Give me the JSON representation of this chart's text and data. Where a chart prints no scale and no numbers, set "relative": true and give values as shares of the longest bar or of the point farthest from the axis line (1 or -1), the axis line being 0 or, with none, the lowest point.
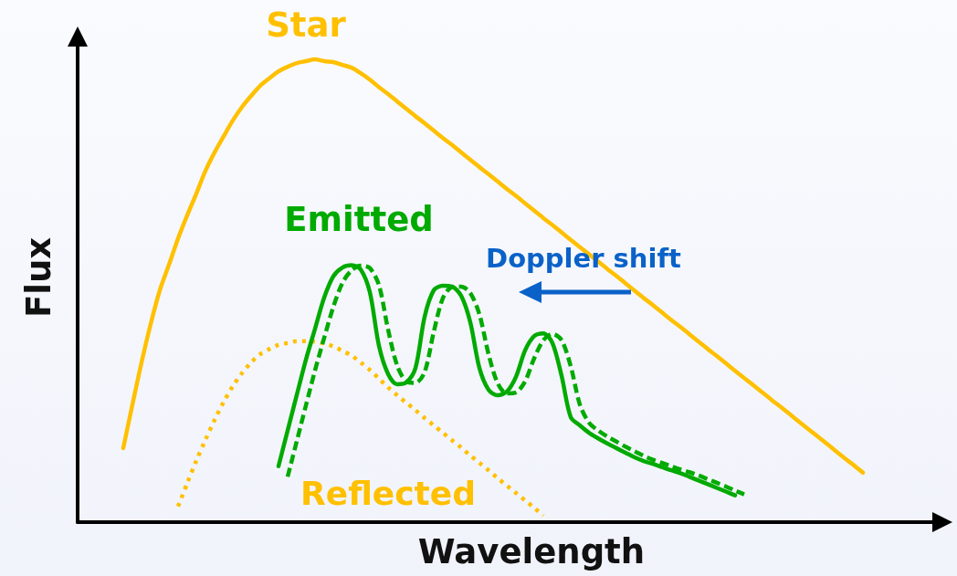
{
  "chart_data": {
    "type": "line",
    "relative": true,
    "xlabel": "Wavelength",
    "ylabel": "Flux",
    "annotations": [
      "Doppler shift"
    ],
    "categories": [
      null,
      null,
      null,
      null,
      null,
      null,
      null,
      null,
      null,
      null,
      null,
      null,
      null,
      null,
      null,
      null,
      null,
      null,
      null,
      null,
      null,
      null,
      null,
      null,
      null,
      null,
      null,
      null,
      null,
      null,
      null,
      null,
      null,
      null,
      null,
      null,
      null,
      null,
      null,
      null,
      null,
      null,
      null,
      null,
      null,
      null,
      null,
      null,
      null,
      null,
      null,
      null,
      null,
      null,
      null,
      null,
      null,
      null,
      null,
      null,
      null,
      null,
      null,
      null,
      null,
      null,
      null,
      null,
      null,
      null,
      null,
      null,
      null,
      null,
      null,
      null,
      null,
      null,
      null,
      null,
      null,
      null,
      null,
      null,
      null,
      null,
      null,
      null,
      null,
      null,
      null,
      null,
      null,
      null,
      null,
      null
    ],
    "series": [
      {
        "name": "Star",
        "color": "#ffc000",
        "line_style": "solid",
        "values": [
          null,
          null,
          null,
          null,
          null,
          0.16,
          0.254,
          0.345,
          0.428,
          0.501,
          0.556,
          0.613,
          0.663,
          0.71,
          0.759,
          0.799,
          0.834,
          0.868,
          0.897,
          0.921,
          0.943,
          0.959,
          0.974,
          0.984,
          0.992,
          0.996,
          1,
          0.996,
          0.994,
          0.988,
          0.982,
          0.97,
          0.956,
          0.94,
          0.925,
          0.909,
          0.893,
          0.877,
          0.862,
          0.846,
          0.83,
          0.815,
          0.799,
          0.783,
          0.767,
          0.752,
          0.736,
          0.72,
          0.705,
          0.689,
          0.673,
          0.657,
          0.642,
          0.626,
          0.61,
          0.594,
          0.579,
          0.563,
          0.547,
          0.532,
          0.516,
          0.5,
          0.484,
          0.469,
          0.453,
          0.437,
          0.422,
          0.406,
          0.39,
          0.374,
          0.359,
          0.343,
          0.327,
          0.311,
          0.296,
          0.28,
          0.264,
          0.249,
          0.233,
          0.217,
          0.201,
          0.186,
          0.17,
          0.154,
          0.138,
          0.123,
          0.107,
          null,
          null,
          null,
          null,
          null,
          null,
          null,
          null,
          null
        ]
      },
      {
        "name": "Reflected",
        "color": "#ffc000",
        "line_style": "dotted",
        "values": [
          null,
          null,
          null,
          null,
          null,
          null,
          null,
          null,
          null,
          null,
          null,
          0.034,
          0.084,
          0.133,
          0.178,
          0.221,
          0.26,
          0.294,
          0.322,
          0.345,
          0.363,
          0.374,
          0.383,
          0.387,
          0.391,
          0.391,
          0.39,
          0.386,
          0.38,
          0.37,
          0.36,
          0.345,
          0.329,
          0.31,
          0.291,
          0.274,
          0.258,
          0.242,
          0.225,
          0.209,
          0.193,
          0.177,
          0.161,
          0.144,
          0.128,
          0.112,
          0.095,
          0.079,
          0.063,
          0.047,
          0.031,
          0.014,
          null,
          null,
          null,
          null,
          null,
          null,
          null,
          null,
          null,
          null,
          null,
          null,
          null,
          null,
          null,
          null,
          null,
          null,
          null,
          null,
          null,
          null,
          null,
          null,
          null,
          null,
          null,
          null,
          null,
          null,
          null,
          null,
          null,
          null,
          null,
          null,
          null,
          null,
          null,
          null,
          null,
          null,
          null,
          null
        ]
      },
      {
        "name": "Emitted",
        "color": "#00aa00",
        "line_style": "solid",
        "values": [
          null,
          null,
          null,
          null,
          null,
          null,
          null,
          null,
          null,
          null,
          null,
          null,
          null,
          null,
          null,
          null,
          null,
          null,
          null,
          null,
          null,
          null,
          0.121,
          0.198,
          0.275,
          0.351,
          0.418,
          0.485,
          0.531,
          0.55,
          0.555,
          0.546,
          0.497,
          0.381,
          0.32,
          0.298,
          0.302,
          0.333,
          0.444,
          0.501,
          0.511,
          0.509,
          0.489,
          0.432,
          0.333,
          0.286,
          0.274,
          0.282,
          0.314,
          0.371,
          0.402,
          0.408,
          0.387,
          0.316,
          0.227,
          0.209,
          0.193,
          0.181,
          0.17,
          0.16,
          0.15,
          0.14,
          0.132,
          0.126,
          0.119,
          0.112,
          0.106,
          0.098,
          0.09,
          0.082,
          0.074,
          0.066,
          0.058,
          null,
          null,
          null,
          null,
          null,
          null,
          null,
          null,
          null,
          null,
          null,
          null,
          null,
          null,
          null,
          null,
          null,
          null,
          null,
          null,
          null,
          null,
          null
        ]
      },
      {
        "color": "#00aa00",
        "line_style": "dashed",
        "values": [
          null,
          null,
          null,
          null,
          null,
          null,
          null,
          null,
          null,
          null,
          null,
          null,
          null,
          null,
          null,
          null,
          null,
          null,
          null,
          null,
          null,
          null,
          null,
          0.098,
          0.175,
          0.252,
          0.328,
          0.398,
          0.465,
          0.517,
          0.544,
          0.554,
          0.549,
          0.512,
          0.416,
          0.338,
          0.304,
          0.301,
          0.324,
          0.411,
          0.484,
          0.508,
          0.509,
          0.495,
          0.449,
          0.363,
          0.3,
          0.278,
          0.28,
          0.304,
          0.354,
          0.393,
          0.407,
          0.393,
          0.337,
          0.254,
          0.215,
          0.198,
          0.185,
          0.174,
          0.163,
          0.153,
          0.143,
          0.135,
          0.128,
          0.121,
          0.114,
          0.108,
          0.101,
          0.093,
          0.085,
          0.077,
          0.068,
          0.06,
          null,
          null,
          null,
          null,
          null,
          null,
          null,
          null,
          null,
          null,
          null,
          null,
          null,
          null,
          null,
          null,
          null,
          null,
          null,
          null,
          null,
          null
        ]
      }
    ]
  }
}
